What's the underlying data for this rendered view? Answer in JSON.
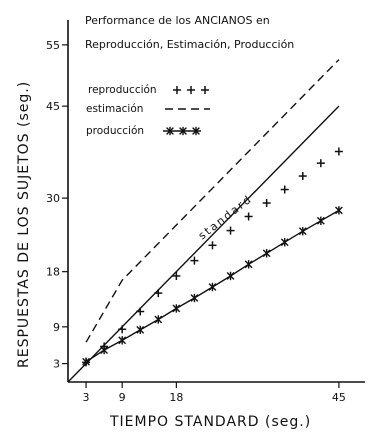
{
  "chart_data": {
    "type": "line",
    "title": [
      "Performance de los ANCIANOS en",
      "Reproducción, Estimación, Producción"
    ],
    "xlabel": "TIEMPO STANDARD (seg.)",
    "ylabel": "RESPUESTAS DE LOS SUJETOS (seg.)",
    "x_ticks": [
      "3",
      "9",
      "18",
      "45"
    ],
    "y_ticks": [
      "3",
      "9",
      "18",
      "30",
      "45",
      "55"
    ],
    "xlim": [
      0,
      47
    ],
    "ylim": [
      0,
      58
    ],
    "grid": false,
    "legend_placement": "upper-left",
    "annotation": "standard",
    "series": [
      {
        "name": "reproducción",
        "marker": "+",
        "line": "none",
        "x": [
          3,
          6,
          9,
          12,
          15,
          18,
          21,
          24,
          27,
          30,
          33,
          36,
          39,
          42,
          45
        ],
        "y": [
          3.2,
          5.8,
          8.6,
          11.5,
          14.5,
          17.3,
          19.8,
          22.3,
          24.7,
          27.0,
          29.2,
          31.4,
          33.6,
          35.7,
          37.6
        ]
      },
      {
        "name": "estimación",
        "marker": "none",
        "line": "dashed",
        "x": [
          3,
          9,
          45
        ],
        "y": [
          6.5,
          16.6,
          52.6
        ]
      },
      {
        "name": "producción",
        "marker": "*",
        "line": "solid",
        "x": [
          3,
          6,
          9,
          12,
          15,
          18,
          21,
          24,
          27,
          30,
          33,
          36,
          39,
          42,
          45
        ],
        "y": [
          3.3,
          5.2,
          6.8,
          8.5,
          10.2,
          12.0,
          13.7,
          15.5,
          17.3,
          19.2,
          21.0,
          22.8,
          24.6,
          26.3,
          28.0
        ]
      },
      {
        "name": "standard",
        "marker": "none",
        "line": "solid",
        "x": [
          0,
          45
        ],
        "y": [
          0,
          45
        ]
      }
    ]
  }
}
